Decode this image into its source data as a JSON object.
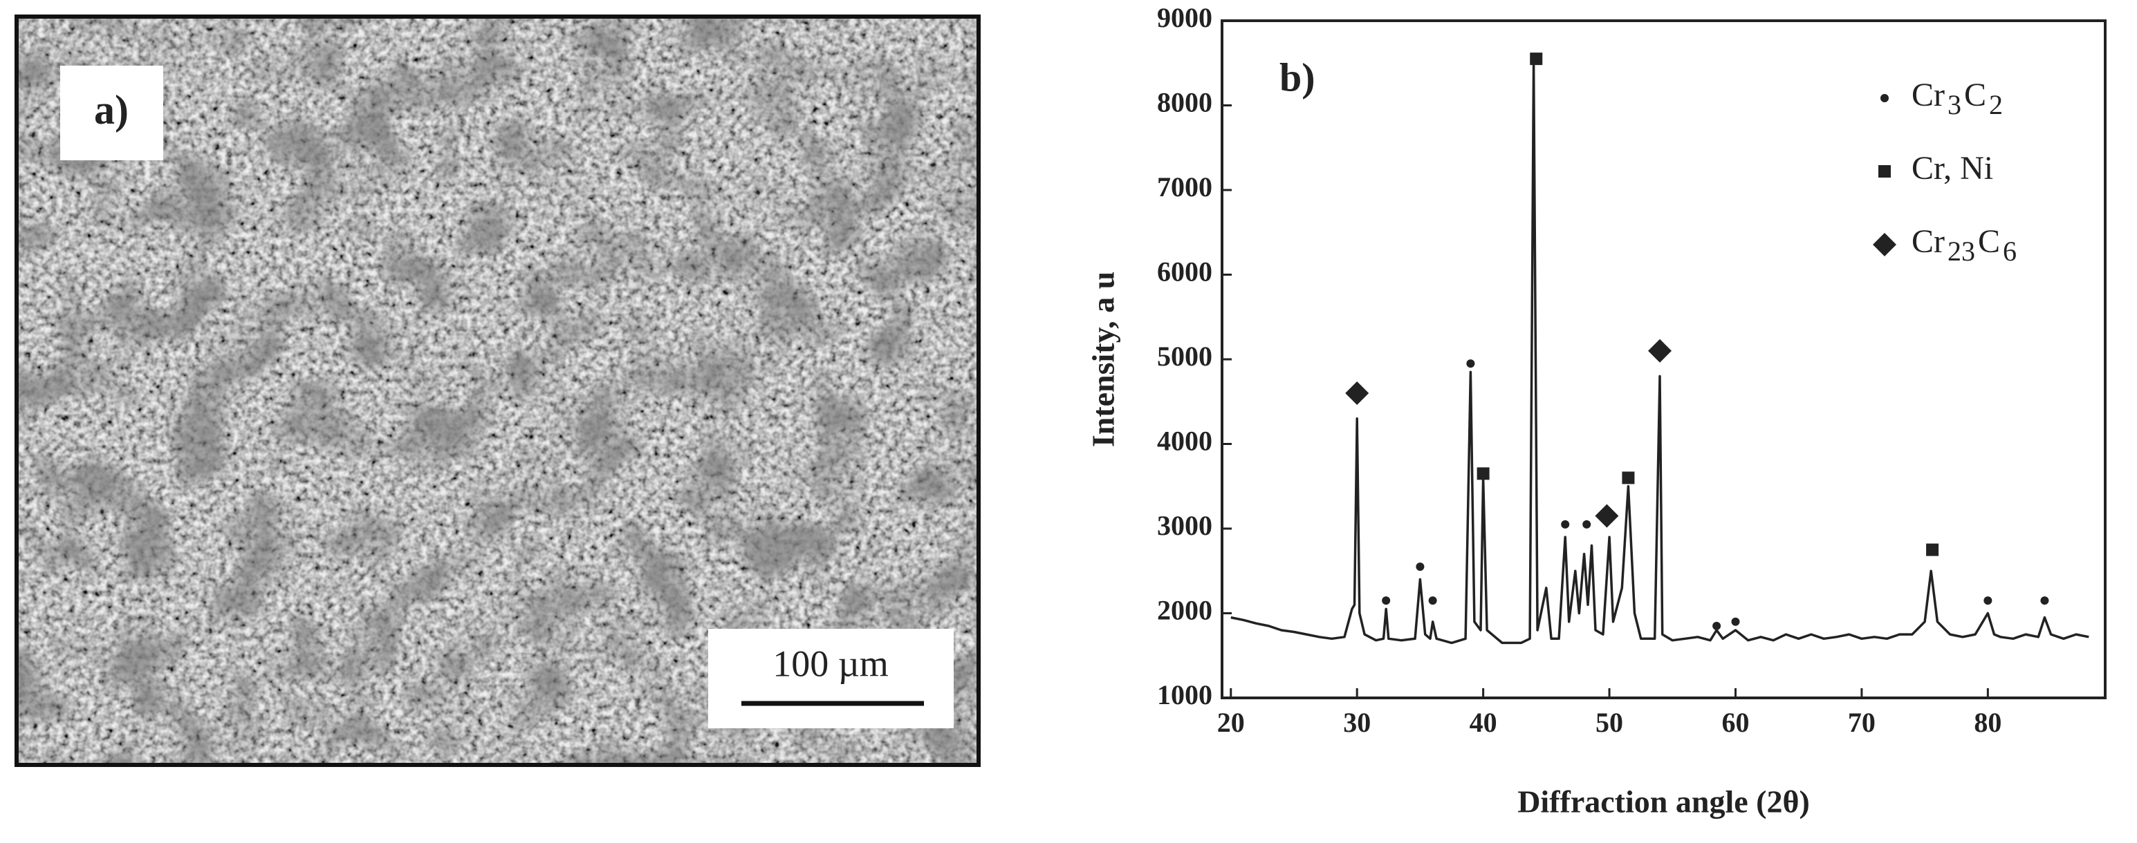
{
  "panel_a": {
    "label": "a)",
    "scale_bar": "100 µm"
  },
  "chart_data": {
    "type": "line",
    "label": "b)",
    "xlabel": "Diffraction angle (2θ)",
    "ylabel": "Intensity, a u",
    "xlim": [
      19.3,
      89.3
    ],
    "ylim": [
      1000,
      9000
    ],
    "xticks": [
      20,
      30,
      40,
      50,
      60,
      70,
      80
    ],
    "yticks": [
      1000,
      2000,
      3000,
      4000,
      5000,
      6000,
      7000,
      8000,
      9000
    ],
    "color": "#222222",
    "x": [
      20,
      21,
      22,
      23,
      24,
      25,
      26,
      27,
      28,
      29,
      29.6,
      29.8,
      30,
      30.2,
      30.6,
      31.5,
      32.1,
      32.3,
      32.5,
      33.5,
      34.6,
      35,
      35.4,
      35.8,
      36,
      36.3,
      37.5,
      38.6,
      39,
      39.3,
      39.8,
      40,
      40.3,
      41.5,
      43,
      43.7,
      44,
      44.3,
      45,
      45.4,
      46,
      46.5,
      46.8,
      47.3,
      47.6,
      48,
      48.3,
      48.6,
      48.9,
      49.5,
      50,
      50.3,
      51,
      51.5,
      52,
      52.5,
      53.6,
      54,
      54.2,
      55,
      56,
      57,
      58,
      58.5,
      59,
      60,
      61,
      62,
      63,
      64,
      65,
      66,
      67,
      68,
      69,
      70,
      71,
      72,
      73,
      74,
      75,
      75.5,
      76,
      77,
      78,
      79,
      80,
      80.5,
      81,
      82,
      83,
      84,
      84.5,
      85,
      86,
      87,
      88
    ],
    "values": [
      1950,
      1920,
      1880,
      1850,
      1800,
      1780,
      1750,
      1720,
      1700,
      1720,
      2050,
      2100,
      4300,
      2000,
      1750,
      1680,
      1700,
      2050,
      1700,
      1680,
      1700,
      2400,
      1750,
      1700,
      1900,
      1700,
      1650,
      1700,
      4850,
      1900,
      1800,
      3600,
      1800,
      1650,
      1650,
      1700,
      8500,
      1800,
      2300,
      1700,
      1700,
      2900,
      1900,
      2500,
      2000,
      2700,
      2100,
      2800,
      1800,
      1750,
      2900,
      1900,
      2300,
      3500,
      2000,
      1700,
      1700,
      4800,
      1750,
      1680,
      1700,
      1720,
      1680,
      1800,
      1700,
      1800,
      1680,
      1720,
      1680,
      1750,
      1700,
      1750,
      1700,
      1720,
      1750,
      1700,
      1720,
      1700,
      1750,
      1750,
      1900,
      2500,
      1900,
      1750,
      1720,
      1750,
      2000,
      1750,
      1720,
      1700,
      1750,
      1720,
      1950,
      1750,
      1700,
      1750,
      1720
    ],
    "phases": [
      {
        "label": [
          "Cr",
          "3",
          "C",
          "2"
        ],
        "marker": "dot",
        "peaks": {
          "x": [
            32.3,
            35.0,
            36.0,
            39.0,
            46.5,
            48.2,
            58.5,
            60.0,
            80.0,
            84.5
          ],
          "y": [
            2150,
            2550,
            2150,
            4950,
            3050,
            3050,
            1850,
            1900,
            2150,
            2150
          ]
        }
      },
      {
        "label": [
          "Cr, Ni"
        ],
        "marker": "square",
        "peaks": {
          "x": [
            40.0,
            44.2,
            51.5,
            75.6
          ],
          "y": [
            3650,
            8550,
            3600,
            2750
          ]
        }
      },
      {
        "label": [
          "Cr",
          "23",
          "C",
          "6"
        ],
        "marker": "diamond",
        "peaks": {
          "x": [
            30.0,
            49.8,
            54.0
          ],
          "y": [
            4600,
            3150,
            5100
          ]
        }
      }
    ]
  }
}
